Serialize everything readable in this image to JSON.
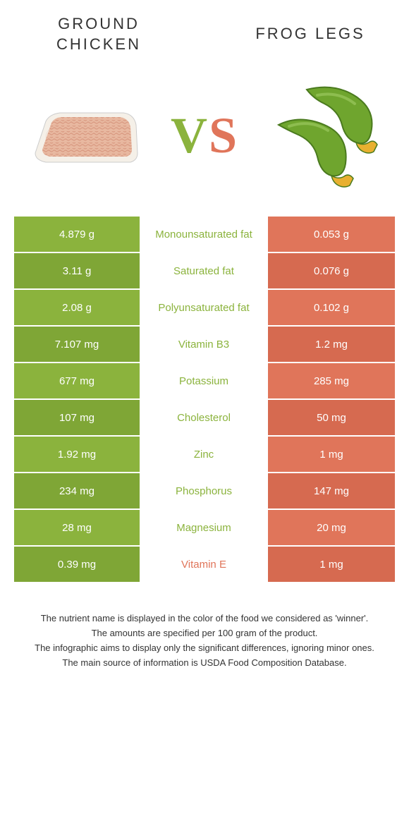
{
  "colors": {
    "green": "#8bb33d",
    "green_dark": "#7fa636",
    "orange": "#e0755a",
    "orange_dark": "#d66a50",
    "mid_bg": "#ffffff",
    "text_dark": "#333333"
  },
  "header": {
    "left_title": "Ground chicken",
    "right_title": "Frog legs",
    "vs": "VS"
  },
  "table": {
    "rows": [
      {
        "left": "4.879 g",
        "label": "Monounsaturated fat",
        "right": "0.053 g",
        "winner": "left"
      },
      {
        "left": "3.11 g",
        "label": "Saturated fat",
        "right": "0.076 g",
        "winner": "left"
      },
      {
        "left": "2.08 g",
        "label": "Polyunsaturated fat",
        "right": "0.102 g",
        "winner": "left"
      },
      {
        "left": "7.107 mg",
        "label": "Vitamin B3",
        "right": "1.2 mg",
        "winner": "left"
      },
      {
        "left": "677 mg",
        "label": "Potassium",
        "right": "285 mg",
        "winner": "left"
      },
      {
        "left": "107 mg",
        "label": "Cholesterol",
        "right": "50 mg",
        "winner": "left"
      },
      {
        "left": "1.92 mg",
        "label": "Zinc",
        "right": "1 mg",
        "winner": "left"
      },
      {
        "left": "234 mg",
        "label": "Phosphorus",
        "right": "147 mg",
        "winner": "left"
      },
      {
        "left": "28 mg",
        "label": "Magnesium",
        "right": "20 mg",
        "winner": "left"
      },
      {
        "left": "0.39 mg",
        "label": "Vitamin E",
        "right": "1 mg",
        "winner": "right"
      }
    ]
  },
  "footer": {
    "line1": "The nutrient name is displayed in the color of the food we considered as 'winner'.",
    "line2": "The amounts are specified per 100 gram of the product.",
    "line3": "The infographic aims to display only the significant differences, ignoring minor ones.",
    "line4": "The main source of information is USDA Food Composition Database."
  }
}
